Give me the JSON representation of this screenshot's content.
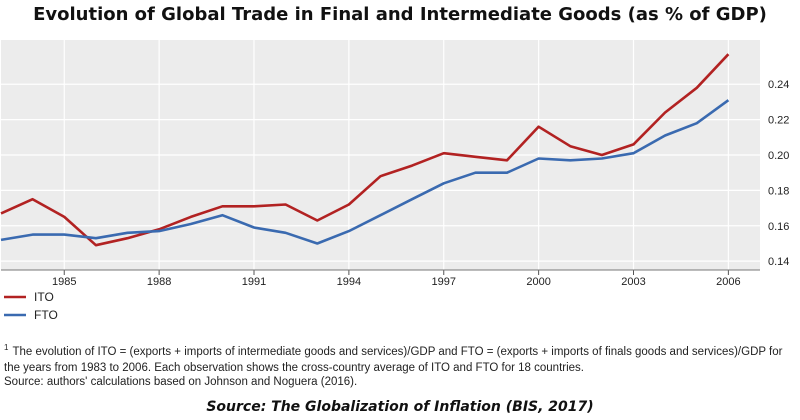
{
  "chart_data": {
    "type": "line",
    "title": "Evolution of Global Trade in Final and Intermediate Goods (as % of GDP)",
    "x": [
      1983,
      1984,
      1985,
      1986,
      1987,
      1988,
      1989,
      1990,
      1991,
      1992,
      1993,
      1994,
      1995,
      1996,
      1997,
      1998,
      1999,
      2000,
      2001,
      2002,
      2003,
      2004,
      2005,
      2006
    ],
    "x_ticks": [
      "1985",
      "1988",
      "1991",
      "1994",
      "1997",
      "2000",
      "2003",
      "2006"
    ],
    "y_ticks": [
      "0.14",
      "0.16",
      "0.18",
      "0.20",
      "0.22",
      "0.24"
    ],
    "ylim": [
      0.135,
      0.265
    ],
    "xlim": [
      1983,
      2007
    ],
    "grid": true,
    "legend_position": "bottom-left",
    "series": [
      {
        "name": "ITO",
        "color": "#b22222",
        "values": [
          0.167,
          0.175,
          0.165,
          0.149,
          0.153,
          0.158,
          0.165,
          0.171,
          0.171,
          0.172,
          0.163,
          0.172,
          0.188,
          0.194,
          0.201,
          0.199,
          0.197,
          0.216,
          0.205,
          0.2,
          0.206,
          0.224,
          0.238,
          0.257
        ]
      },
      {
        "name": "FTO",
        "color": "#3a6ab0",
        "values": [
          0.152,
          0.155,
          0.155,
          0.153,
          0.156,
          0.157,
          0.161,
          0.166,
          0.159,
          0.156,
          0.15,
          0.157,
          0.166,
          0.175,
          0.184,
          0.19,
          0.19,
          0.198,
          0.197,
          0.198,
          0.201,
          0.211,
          0.218,
          0.231
        ]
      }
    ]
  },
  "footnote": {
    "sup": "1",
    "text": "The evolution of ITO = (exports + imports of intermediate goods and services)/GDP and FTO = (exports + imports of finals goods and services)/GDP for the years from 1983 to 2006. Each observation shows the cross-country average of ITO and FTO for 18 countries."
  },
  "source_note": "Source: authors' calculations based on Johnson and Noguera (2016).",
  "bottom_source": "Source: The Globalization  of  Inflation (BIS, 2017)"
}
